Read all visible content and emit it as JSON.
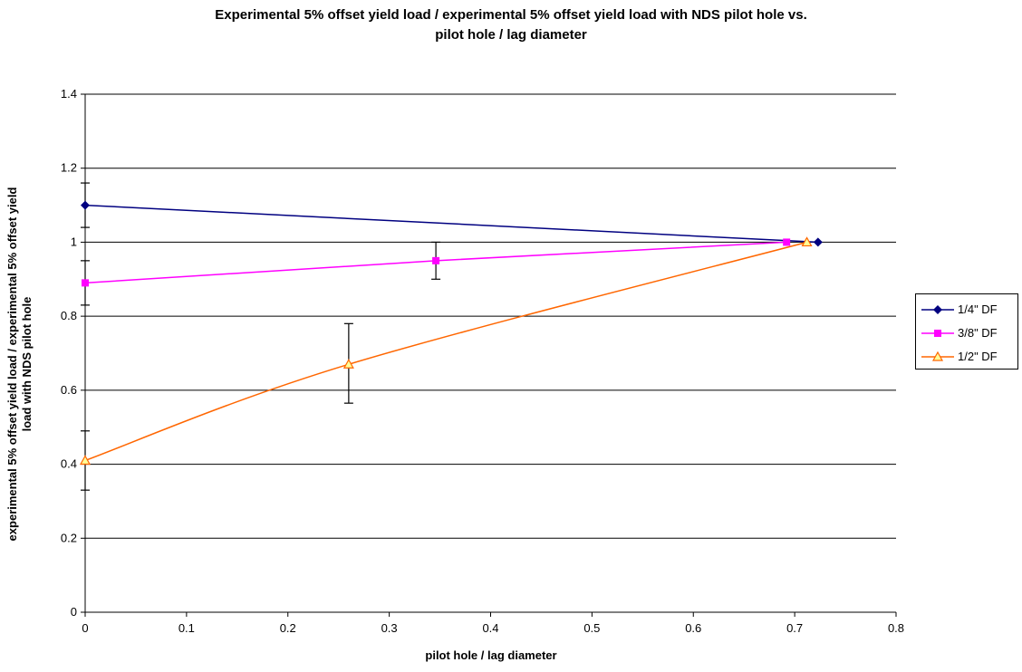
{
  "chart_data": {
    "type": "line",
    "title_line1": "Experimental 5% offset yield load / experimental 5% offset yield load with NDS pilot hole vs.",
    "title_line2": "pilot hole / lag diameter",
    "xlabel": "pilot hole / lag diameter",
    "ylabel_line1": "experimental 5% offset yield load / experimental 5% offset yield",
    "ylabel_line2": "load with NDS pilot hole",
    "xlim": [
      0,
      0.8
    ],
    "ylim": [
      0,
      1.4
    ],
    "xticks": [
      "0",
      "0.1",
      "0.2",
      "0.3",
      "0.4",
      "0.5",
      "0.6",
      "0.7",
      "0.8"
    ],
    "yticks": [
      "0",
      "0.2",
      "0.4",
      "0.6",
      "0.8",
      "1",
      "1.2",
      "1.4"
    ],
    "grid": "horizontal",
    "legend_position": "right",
    "series": [
      {
        "name": "1/4\" DF",
        "color": "#000080",
        "marker": "diamond",
        "points": [
          [
            0,
            1.1
          ],
          [
            0.723,
            1.0
          ]
        ],
        "error_bars": [
          [
            0,
            1.04,
            1.16
          ]
        ]
      },
      {
        "name": "3/8\" DF",
        "color": "#FF00FF",
        "marker": "square",
        "points": [
          [
            0,
            0.89
          ],
          [
            0.346,
            0.95
          ],
          [
            0.692,
            1.0
          ]
        ],
        "error_bars": [
          [
            0,
            0.83,
            0.95
          ],
          [
            0.346,
            0.9,
            1.0
          ]
        ]
      },
      {
        "name": "1/2\" DF",
        "color": "#FF6600",
        "marker_fill": "#FFFF99",
        "marker": "triangle",
        "points": [
          [
            0,
            0.41
          ],
          [
            0.26,
            0.67
          ],
          [
            0.712,
            1.0
          ]
        ],
        "error_bars": [
          [
            0,
            0.33,
            0.49
          ],
          [
            0.26,
            0.565,
            0.78
          ]
        ]
      }
    ]
  }
}
